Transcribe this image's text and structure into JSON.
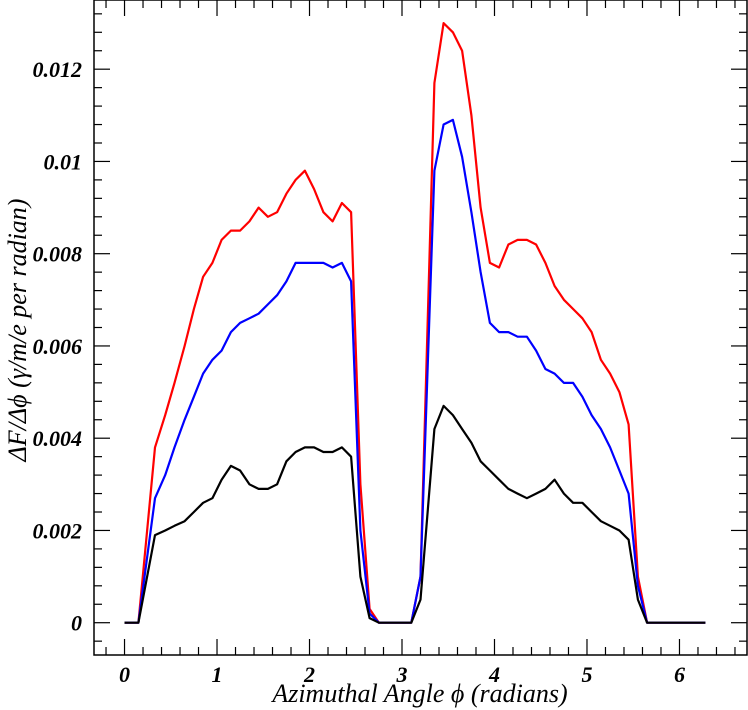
{
  "chart_data": {
    "type": "line",
    "title": "",
    "xlabel": "Azimuthal Angle ϕ (radians)",
    "ylabel": "ΔF/Δϕ (γ/m/e per radian)",
    "xlim": [
      -0.33,
      6.73
    ],
    "ylim": [
      -0.0007,
      0.0135
    ],
    "x_ticks": [
      {
        "value": 0,
        "label": "0"
      },
      {
        "value": 1,
        "label": "1"
      },
      {
        "value": 2,
        "label": "2"
      },
      {
        "value": 3,
        "label": "3"
      },
      {
        "value": 4,
        "label": "4"
      },
      {
        "value": 5,
        "label": "5"
      },
      {
        "value": 6,
        "label": "6"
      }
    ],
    "y_ticks": [
      {
        "value": 0,
        "label": "0"
      },
      {
        "value": 0.002,
        "label": "0.002"
      },
      {
        "value": 0.004,
        "label": "0.004"
      },
      {
        "value": 0.006,
        "label": "0.006"
      },
      {
        "value": 0.008,
        "label": "0.008"
      },
      {
        "value": 0.01,
        "label": "0.01"
      },
      {
        "value": 0.012,
        "label": "0.012"
      }
    ],
    "grid": false,
    "series": [
      {
        "color": "#ff0000",
        "points": [
          [
            0,
            0
          ],
          [
            0.15,
            0
          ],
          [
            0.33,
            0.0038
          ],
          [
            0.44,
            0.0045
          ],
          [
            0.54,
            0.0052
          ],
          [
            0.65,
            0.006
          ],
          [
            0.75,
            0.0068
          ],
          [
            0.85,
            0.0075
          ],
          [
            0.95,
            0.0078
          ],
          [
            1.05,
            0.0083
          ],
          [
            1.15,
            0.0085
          ],
          [
            1.25,
            0.0085
          ],
          [
            1.35,
            0.0087
          ],
          [
            1.45,
            0.009
          ],
          [
            1.55,
            0.0088
          ],
          [
            1.65,
            0.0089
          ],
          [
            1.75,
            0.0093
          ],
          [
            1.85,
            0.0096
          ],
          [
            1.95,
            0.0098
          ],
          [
            2.05,
            0.0094
          ],
          [
            2.15,
            0.0089
          ],
          [
            2.25,
            0.0087
          ],
          [
            2.35,
            0.0091
          ],
          [
            2.45,
            0.0089
          ],
          [
            2.55,
            0.003
          ],
          [
            2.65,
            0.0003
          ],
          [
            2.75,
            0
          ],
          [
            3.1,
            0
          ],
          [
            3.2,
            0.001
          ],
          [
            3.35,
            0.0117
          ],
          [
            3.45,
            0.013
          ],
          [
            3.55,
            0.0128
          ],
          [
            3.65,
            0.0124
          ],
          [
            3.75,
            0.011
          ],
          [
            3.85,
            0.009
          ],
          [
            3.95,
            0.0078
          ],
          [
            4.05,
            0.0077
          ],
          [
            4.15,
            0.0082
          ],
          [
            4.25,
            0.0083
          ],
          [
            4.35,
            0.0083
          ],
          [
            4.45,
            0.0082
          ],
          [
            4.55,
            0.0078
          ],
          [
            4.65,
            0.0073
          ],
          [
            4.75,
            0.007
          ],
          [
            4.85,
            0.0068
          ],
          [
            4.95,
            0.0066
          ],
          [
            5.05,
            0.0063
          ],
          [
            5.15,
            0.0057
          ],
          [
            5.25,
            0.0054
          ],
          [
            5.35,
            0.005
          ],
          [
            5.45,
            0.0043
          ],
          [
            5.55,
            0.001
          ],
          [
            5.65,
            0
          ],
          [
            6.05,
            0
          ],
          [
            6.28,
            0
          ]
        ]
      },
      {
        "color": "#0000ff",
        "points": [
          [
            0,
            0
          ],
          [
            0.15,
            0
          ],
          [
            0.33,
            0.0027
          ],
          [
            0.44,
            0.0032
          ],
          [
            0.54,
            0.0038
          ],
          [
            0.65,
            0.0044
          ],
          [
            0.75,
            0.0049
          ],
          [
            0.85,
            0.0054
          ],
          [
            0.95,
            0.0057
          ],
          [
            1.05,
            0.0059
          ],
          [
            1.15,
            0.0063
          ],
          [
            1.25,
            0.0065
          ],
          [
            1.35,
            0.0066
          ],
          [
            1.45,
            0.0067
          ],
          [
            1.55,
            0.0069
          ],
          [
            1.65,
            0.0071
          ],
          [
            1.75,
            0.0074
          ],
          [
            1.85,
            0.0078
          ],
          [
            1.95,
            0.0078
          ],
          [
            2.05,
            0.0078
          ],
          [
            2.15,
            0.0078
          ],
          [
            2.25,
            0.0077
          ],
          [
            2.35,
            0.0078
          ],
          [
            2.45,
            0.0074
          ],
          [
            2.55,
            0.002
          ],
          [
            2.65,
            0.0002
          ],
          [
            2.75,
            0
          ],
          [
            3.1,
            0
          ],
          [
            3.2,
            0.001
          ],
          [
            3.35,
            0.0098
          ],
          [
            3.45,
            0.0108
          ],
          [
            3.55,
            0.0109
          ],
          [
            3.65,
            0.0101
          ],
          [
            3.75,
            0.0089
          ],
          [
            3.85,
            0.0076
          ],
          [
            3.95,
            0.0065
          ],
          [
            4.05,
            0.0063
          ],
          [
            4.15,
            0.0063
          ],
          [
            4.25,
            0.0062
          ],
          [
            4.35,
            0.0062
          ],
          [
            4.45,
            0.0059
          ],
          [
            4.55,
            0.0055
          ],
          [
            4.65,
            0.0054
          ],
          [
            4.75,
            0.0052
          ],
          [
            4.85,
            0.0052
          ],
          [
            4.95,
            0.0049
          ],
          [
            5.05,
            0.0045
          ],
          [
            5.15,
            0.0042
          ],
          [
            5.25,
            0.0038
          ],
          [
            5.35,
            0.0033
          ],
          [
            5.45,
            0.0028
          ],
          [
            5.55,
            0.0008
          ],
          [
            5.65,
            0
          ],
          [
            6.05,
            0
          ],
          [
            6.28,
            0
          ]
        ]
      },
      {
        "color": "#000000",
        "points": [
          [
            0,
            0
          ],
          [
            0.15,
            0
          ],
          [
            0.33,
            0.0019
          ],
          [
            0.44,
            0.002
          ],
          [
            0.54,
            0.0021
          ],
          [
            0.65,
            0.0022
          ],
          [
            0.75,
            0.0024
          ],
          [
            0.85,
            0.0026
          ],
          [
            0.95,
            0.0027
          ],
          [
            1.05,
            0.0031
          ],
          [
            1.15,
            0.0034
          ],
          [
            1.25,
            0.0033
          ],
          [
            1.35,
            0.003
          ],
          [
            1.45,
            0.0029
          ],
          [
            1.55,
            0.0029
          ],
          [
            1.65,
            0.003
          ],
          [
            1.75,
            0.0035
          ],
          [
            1.85,
            0.0037
          ],
          [
            1.95,
            0.0038
          ],
          [
            2.05,
            0.0038
          ],
          [
            2.15,
            0.0037
          ],
          [
            2.25,
            0.0037
          ],
          [
            2.35,
            0.0038
          ],
          [
            2.45,
            0.0036
          ],
          [
            2.55,
            0.001
          ],
          [
            2.65,
            0.0001
          ],
          [
            2.75,
            0
          ],
          [
            3.1,
            0
          ],
          [
            3.2,
            0.0005
          ],
          [
            3.35,
            0.0042
          ],
          [
            3.45,
            0.0047
          ],
          [
            3.55,
            0.0045
          ],
          [
            3.65,
            0.0042
          ],
          [
            3.75,
            0.0039
          ],
          [
            3.85,
            0.0035
          ],
          [
            3.95,
            0.0033
          ],
          [
            4.05,
            0.0031
          ],
          [
            4.15,
            0.0029
          ],
          [
            4.25,
            0.0028
          ],
          [
            4.35,
            0.0027
          ],
          [
            4.45,
            0.0028
          ],
          [
            4.55,
            0.0029
          ],
          [
            4.65,
            0.0031
          ],
          [
            4.75,
            0.0028
          ],
          [
            4.85,
            0.0026
          ],
          [
            4.95,
            0.0026
          ],
          [
            5.05,
            0.0024
          ],
          [
            5.15,
            0.0022
          ],
          [
            5.25,
            0.0021
          ],
          [
            5.35,
            0.002
          ],
          [
            5.45,
            0.0018
          ],
          [
            5.55,
            0.0005
          ],
          [
            5.65,
            0
          ],
          [
            6.05,
            0
          ],
          [
            6.28,
            0
          ]
        ]
      }
    ]
  }
}
